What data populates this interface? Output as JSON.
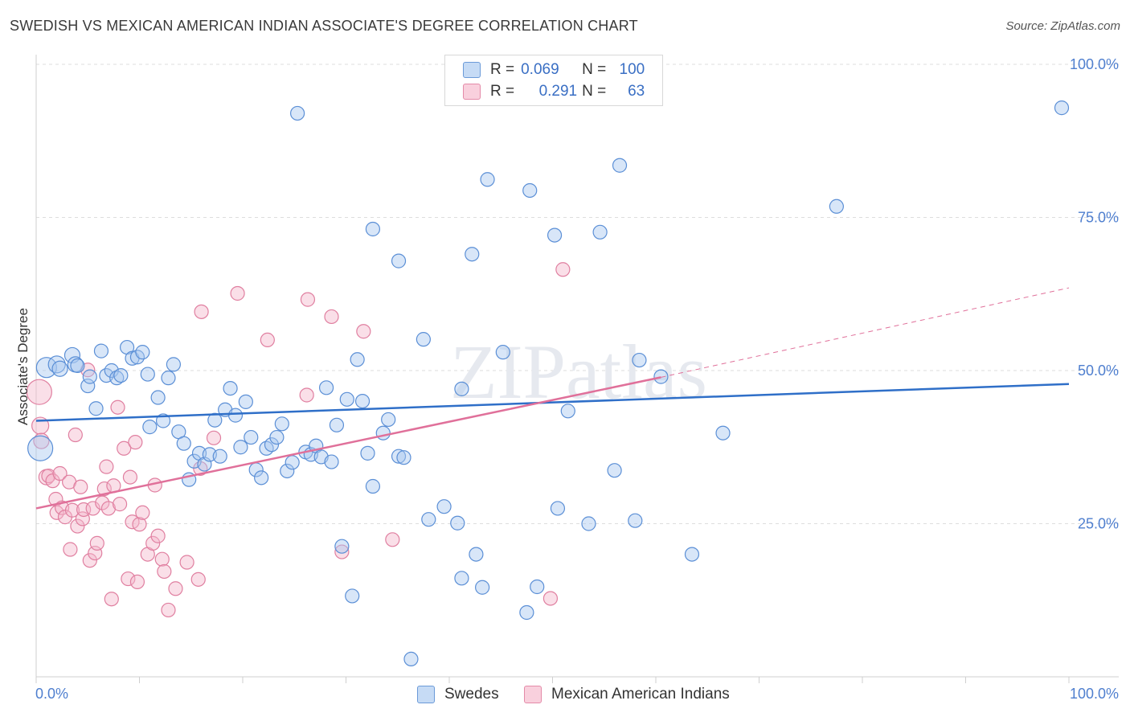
{
  "title": "SWEDISH VS MEXICAN AMERICAN INDIAN ASSOCIATE'S DEGREE CORRELATION CHART",
  "source": "Source: ZipAtlas.com",
  "watermark": "ZIPatlas",
  "colors": {
    "blue_fill": "#a9c8f0",
    "blue_stroke": "#5b8fd6",
    "blue_line": "#2f6fc8",
    "pink_fill": "#f5b9cb",
    "pink_stroke": "#e07fa0",
    "pink_line": "#e0709a",
    "axis_text": "#4f7fcf",
    "grid": "#dddddd"
  },
  "legend": {
    "rows": [
      {
        "r_label": "R =",
        "r_value": "0.069",
        "n_label": "N =",
        "n_value": "100"
      },
      {
        "r_label": "R =",
        "r_value": "0.291",
        "n_label": "N =",
        "n_value": "63"
      }
    ]
  },
  "chart_data": {
    "type": "scatter",
    "title": "SWEDISH VS MEXICAN AMERICAN INDIAN ASSOCIATE'S DEGREE CORRELATION CHART",
    "xlabel": "",
    "ylabel": "Associate's Degree",
    "xlim": [
      0,
      100
    ],
    "ylim": [
      0,
      100
    ],
    "x_tick_labels": [
      "0.0%",
      "100.0%"
    ],
    "y_tick_labels": [
      "25.0%",
      "50.0%",
      "75.0%",
      "100.0%"
    ],
    "y_ticks": [
      25,
      50,
      75,
      100
    ],
    "grid": true,
    "legend_position": "top-center",
    "series": [
      {
        "name": "Swedes",
        "color": "#a9c8f0",
        "r": "0.069",
        "n": "100",
        "trend": {
          "x": [
            0,
            100
          ],
          "y": [
            41.8,
            47.8
          ],
          "dashed_from": null
        },
        "points": [
          [
            0.4,
            37.3,
            14
          ],
          [
            1.0,
            50.5,
            11
          ],
          [
            2.0,
            51.0,
            9
          ],
          [
            2.3,
            50.3,
            8
          ],
          [
            3.5,
            52.5,
            8
          ],
          [
            3.8,
            51.0,
            8
          ],
          [
            4.0,
            50.8,
            7
          ],
          [
            5.0,
            47.5,
            7
          ],
          [
            5.2,
            49.0,
            7
          ],
          [
            5.8,
            43.8,
            7
          ],
          [
            6.3,
            53.2,
            7
          ],
          [
            6.8,
            49.2,
            7
          ],
          [
            7.3,
            50.0,
            7
          ],
          [
            7.8,
            48.8,
            7
          ],
          [
            8.2,
            49.2,
            7
          ],
          [
            8.8,
            53.8,
            7
          ],
          [
            9.3,
            52.0,
            7
          ],
          [
            9.8,
            52.2,
            7
          ],
          [
            10.3,
            53.0,
            7
          ],
          [
            10.8,
            49.4,
            7
          ],
          [
            11.0,
            40.8,
            7
          ],
          [
            11.8,
            45.6,
            7
          ],
          [
            12.3,
            41.8,
            7
          ],
          [
            12.8,
            48.8,
            7
          ],
          [
            13.3,
            51.0,
            7
          ],
          [
            13.8,
            40.0,
            7
          ],
          [
            14.3,
            38.1,
            7
          ],
          [
            14.8,
            32.2,
            7
          ],
          [
            15.3,
            35.2,
            7
          ],
          [
            15.8,
            36.5,
            7
          ],
          [
            16.3,
            34.7,
            7
          ],
          [
            16.8,
            36.3,
            7
          ],
          [
            17.3,
            41.9,
            7
          ],
          [
            17.8,
            36.0,
            7
          ],
          [
            18.3,
            43.6,
            7
          ],
          [
            18.8,
            47.1,
            7
          ],
          [
            19.3,
            42.7,
            7
          ],
          [
            19.8,
            37.5,
            7
          ],
          [
            20.3,
            44.9,
            7
          ],
          [
            20.8,
            39.1,
            7
          ],
          [
            21.3,
            33.8,
            7
          ],
          [
            21.8,
            32.5,
            7
          ],
          [
            22.3,
            37.3,
            7
          ],
          [
            22.8,
            37.9,
            7
          ],
          [
            23.3,
            39.1,
            7
          ],
          [
            23.8,
            41.3,
            7
          ],
          [
            24.3,
            33.6,
            7
          ],
          [
            24.8,
            35.0,
            7
          ],
          [
            25.3,
            92.0,
            7
          ],
          [
            26.1,
            36.7,
            7
          ],
          [
            26.6,
            36.3,
            7
          ],
          [
            27.1,
            37.7,
            7
          ],
          [
            27.6,
            35.9,
            7
          ],
          [
            28.1,
            47.2,
            7
          ],
          [
            28.6,
            35.1,
            7
          ],
          [
            29.1,
            41.1,
            7
          ],
          [
            29.6,
            21.3,
            7
          ],
          [
            30.1,
            45.3,
            7
          ],
          [
            30.6,
            13.2,
            7
          ],
          [
            31.1,
            51.8,
            7
          ],
          [
            31.6,
            45.0,
            7
          ],
          [
            32.1,
            36.5,
            7
          ],
          [
            32.6,
            31.1,
            7
          ],
          [
            32.6,
            73.1,
            7
          ],
          [
            33.6,
            39.8,
            7
          ],
          [
            34.1,
            42.0,
            7
          ],
          [
            35.1,
            36.0,
            7
          ],
          [
            35.1,
            67.9,
            7
          ],
          [
            35.6,
            35.8,
            7
          ],
          [
            36.3,
            2.9,
            7
          ],
          [
            37.5,
            55.1,
            7
          ],
          [
            38.0,
            25.7,
            7
          ],
          [
            39.5,
            27.8,
            7
          ],
          [
            40.8,
            25.1,
            7
          ],
          [
            41.2,
            16.1,
            7
          ],
          [
            41.2,
            47.0,
            7
          ],
          [
            42.2,
            69.0,
            7
          ],
          [
            42.6,
            20.0,
            7
          ],
          [
            43.2,
            14.6,
            7
          ],
          [
            43.7,
            81.2,
            7
          ],
          [
            45.2,
            53.0,
            7
          ],
          [
            47.5,
            10.5,
            7
          ],
          [
            47.8,
            79.4,
            7
          ],
          [
            48.5,
            14.7,
            7
          ],
          [
            50.2,
            72.1,
            7
          ],
          [
            50.5,
            27.5,
            7
          ],
          [
            51.5,
            43.4,
            7
          ],
          [
            53.5,
            25.0,
            7
          ],
          [
            54.6,
            72.6,
            7
          ],
          [
            56.0,
            33.7,
            7
          ],
          [
            56.5,
            83.5,
            7
          ],
          [
            58.0,
            25.5,
            7
          ],
          [
            58.4,
            51.7,
            7
          ],
          [
            60.5,
            49.0,
            7
          ],
          [
            63.5,
            20.0,
            7
          ],
          [
            66.5,
            39.8,
            7
          ],
          [
            77.5,
            76.8,
            7
          ],
          [
            99.3,
            92.9,
            7
          ]
        ]
      },
      {
        "name": "Mexican American Indians",
        "color": "#f5b9cb",
        "r": "0.291",
        "n": "63",
        "trend": {
          "x": [
            0,
            60.5,
            100
          ],
          "y": [
            27.5,
            48.9,
            63.5
          ],
          "dashed_from": 60.5
        },
        "points": [
          [
            0.3,
            46.5,
            14
          ],
          [
            0.4,
            41.0,
            9
          ],
          [
            0.5,
            38.5,
            8
          ],
          [
            1.0,
            32.6,
            8
          ],
          [
            1.2,
            32.8,
            7
          ],
          [
            1.6,
            32.0,
            7
          ],
          [
            1.9,
            29.0,
            7
          ],
          [
            2.0,
            26.8,
            7
          ],
          [
            2.3,
            33.2,
            7
          ],
          [
            2.5,
            27.6,
            7
          ],
          [
            2.8,
            26.1,
            7
          ],
          [
            3.2,
            31.8,
            7
          ],
          [
            3.3,
            20.8,
            7
          ],
          [
            3.5,
            27.2,
            7
          ],
          [
            3.8,
            39.5,
            7
          ],
          [
            4.0,
            24.6,
            7
          ],
          [
            4.3,
            31.0,
            7
          ],
          [
            4.5,
            25.8,
            7
          ],
          [
            4.6,
            27.3,
            7
          ],
          [
            5.0,
            50.1,
            7
          ],
          [
            5.2,
            19.0,
            7
          ],
          [
            5.5,
            27.5,
            7
          ],
          [
            5.7,
            20.2,
            7
          ],
          [
            5.9,
            21.8,
            7
          ],
          [
            6.4,
            28.4,
            7
          ],
          [
            6.6,
            30.7,
            7
          ],
          [
            6.8,
            34.3,
            7
          ],
          [
            7.0,
            27.5,
            7
          ],
          [
            7.3,
            12.7,
            7
          ],
          [
            7.5,
            31.2,
            7
          ],
          [
            7.9,
            44.0,
            7
          ],
          [
            8.1,
            28.2,
            7
          ],
          [
            8.5,
            37.3,
            7
          ],
          [
            8.9,
            16.0,
            7
          ],
          [
            9.1,
            32.6,
            7
          ],
          [
            9.3,
            25.3,
            7
          ],
          [
            9.6,
            38.3,
            7
          ],
          [
            9.8,
            15.5,
            7
          ],
          [
            10.0,
            24.9,
            7
          ],
          [
            10.3,
            26.8,
            7
          ],
          [
            10.8,
            20.0,
            7
          ],
          [
            11.3,
            21.8,
            7
          ],
          [
            11.5,
            31.3,
            7
          ],
          [
            11.8,
            23.0,
            7
          ],
          [
            12.2,
            19.2,
            7
          ],
          [
            12.4,
            17.2,
            7
          ],
          [
            12.8,
            10.9,
            7
          ],
          [
            13.5,
            14.4,
            7
          ],
          [
            14.6,
            18.7,
            7
          ],
          [
            15.7,
            15.9,
            7
          ],
          [
            15.9,
            34.0,
            7
          ],
          [
            16.0,
            59.6,
            7
          ],
          [
            17.2,
            39.0,
            7
          ],
          [
            19.5,
            62.6,
            7
          ],
          [
            22.4,
            55.0,
            7
          ],
          [
            26.2,
            46.0,
            7
          ],
          [
            26.3,
            61.6,
            7
          ],
          [
            28.6,
            58.8,
            7
          ],
          [
            29.6,
            20.4,
            7
          ],
          [
            31.7,
            56.4,
            7
          ],
          [
            34.5,
            22.4,
            7
          ],
          [
            49.8,
            12.8,
            7
          ],
          [
            51.0,
            66.5,
            7
          ]
        ]
      }
    ]
  },
  "bottom_legend": [
    {
      "label": "Swedes"
    },
    {
      "label": "Mexican American Indians"
    }
  ]
}
